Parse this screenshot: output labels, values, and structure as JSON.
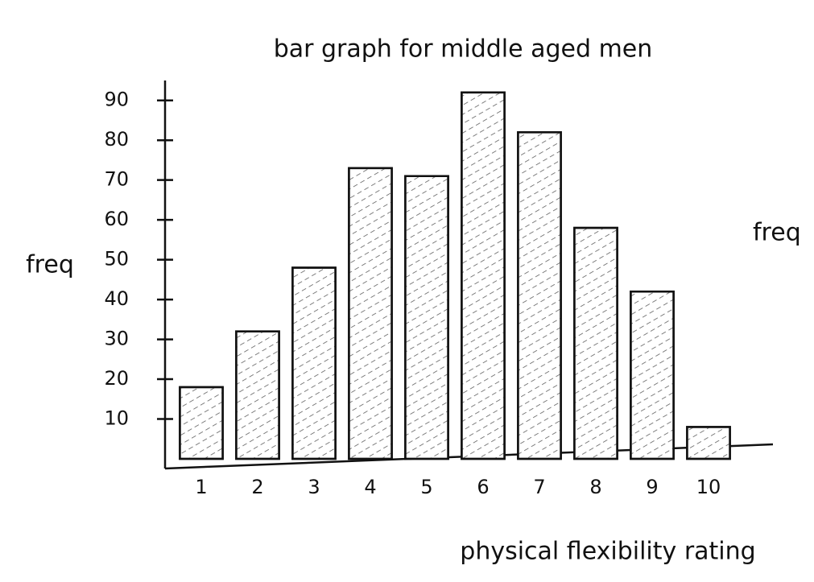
{
  "chart_data": {
    "type": "bar",
    "title": "bar graph for middle aged men",
    "x_label": "physical flexibility rating",
    "y_label": "freq",
    "annotation": "freq",
    "categories": [
      "1",
      "2",
      "3",
      "4",
      "5",
      "6",
      "7",
      "8",
      "9",
      "10"
    ],
    "values": [
      18,
      32,
      48,
      73,
      71,
      92,
      82,
      58,
      42,
      8
    ],
    "color": "#555555",
    "ylim": [
      0,
      95
    ],
    "yticks": [
      10,
      20,
      30,
      40,
      50,
      60,
      70,
      80,
      90
    ],
    "grid": false
  }
}
